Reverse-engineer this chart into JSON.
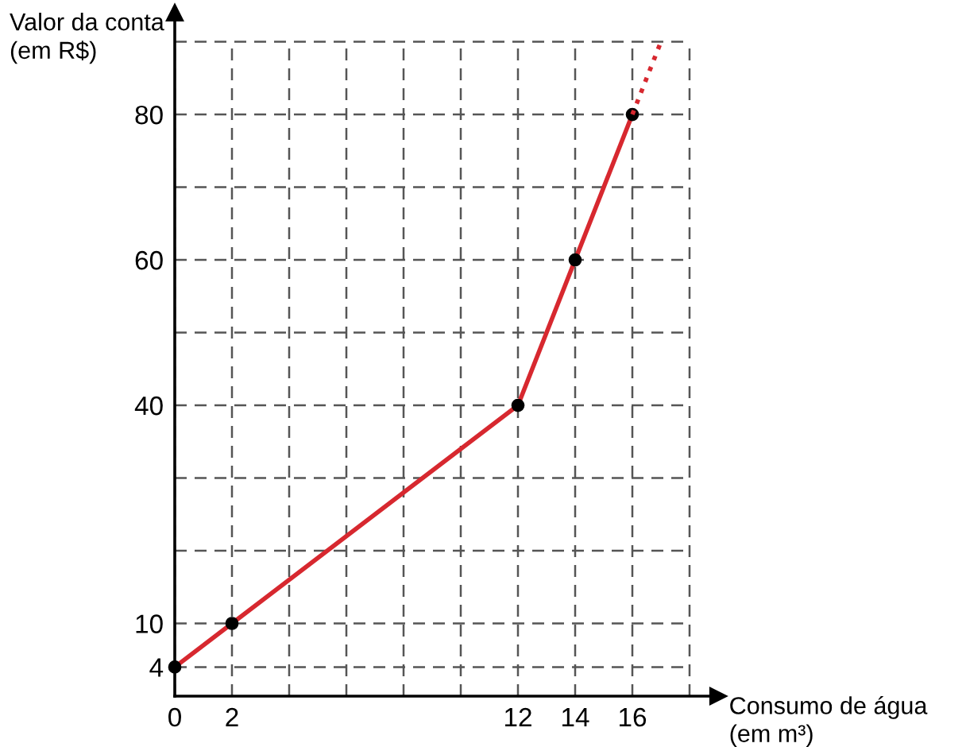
{
  "chart_data": {
    "type": "line",
    "xlabel": "Consumo de água\n(em m³)",
    "ylabel": "Valor da conta\n(em R$)",
    "xlim": [
      0,
      19
    ],
    "ylim": [
      0,
      94
    ],
    "xticks": [
      0,
      2,
      {
        "value": 4,
        "label": null
      },
      {
        "value": 6,
        "label": null
      },
      {
        "value": 8,
        "label": null
      },
      {
        "value": 10,
        "label": null
      },
      12,
      14,
      16,
      {
        "value": 18,
        "label": null
      }
    ],
    "yticks": [
      4,
      10,
      {
        "value": 20,
        "label": null
      },
      {
        "value": 30,
        "label": null
      },
      40,
      {
        "value": 50,
        "label": null
      },
      60,
      {
        "value": 70,
        "label": null
      },
      80,
      {
        "value": 90,
        "label": null
      }
    ],
    "grid": true,
    "series": [
      {
        "color": "#d7282f",
        "x": [
          0,
          2,
          12,
          14,
          16
        ],
        "values": [
          4,
          10,
          40,
          60,
          80
        ],
        "marker": "circle",
        "line_style": "solid"
      },
      {
        "color": "#d7282f",
        "x": [
          16,
          17
        ],
        "values": [
          80,
          90
        ],
        "marker": "none",
        "line_style": "dotted"
      }
    ]
  }
}
